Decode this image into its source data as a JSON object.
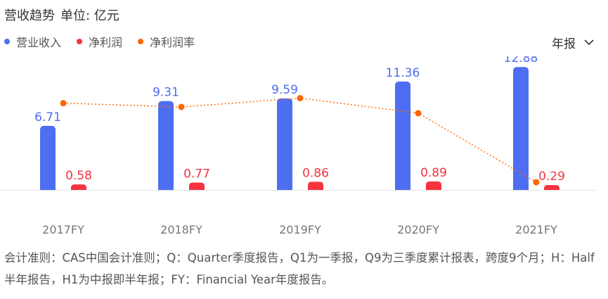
{
  "header": {
    "title": "营收趋势",
    "unit": "单位: 亿元",
    "period_selector": "年报"
  },
  "legend": [
    {
      "label": "营业收入",
      "color": "#4e6ef2"
    },
    {
      "label": "净利润",
      "color": "#f5333f"
    },
    {
      "label": "净利润率",
      "color": "#ff6600"
    }
  ],
  "chart_data": {
    "type": "bar",
    "categories": [
      "2017FY",
      "2018FY",
      "2019FY",
      "2020FY",
      "2021FY"
    ],
    "series": [
      {
        "name": "营业收入",
        "type": "bar",
        "color": "#4e6ef2",
        "values": [
          6.71,
          9.31,
          9.59,
          11.36,
          12.88
        ],
        "labels": [
          "6.71",
          "9.31",
          "9.59",
          "11.36",
          "12.88"
        ]
      },
      {
        "name": "净利润",
        "type": "bar",
        "color": "#f5333f",
        "values": [
          0.58,
          0.77,
          0.86,
          0.89,
          0.29
        ],
        "labels": [
          "0.58",
          "0.77",
          "0.86",
          "0.89",
          "0.29"
        ]
      },
      {
        "name": "净利润率",
        "type": "line",
        "style": "dotted",
        "color": "#ff6600",
        "values": [
          8.6,
          8.3,
          9.0,
          7.8,
          2.3
        ]
      }
    ],
    "ylim": [
      0,
      14
    ],
    "line_ylim": [
      0,
      12
    ],
    "ylabel": "亿元",
    "grid": false
  },
  "footnote": "会计准则：CAS中国会计准则；Q：Quarter季度报告，Q1为一季报，Q9为三季度累计报表，跨度9个月；H：Half半年报告，H1为中报即半年报；FY：Financial Year年度报告。"
}
